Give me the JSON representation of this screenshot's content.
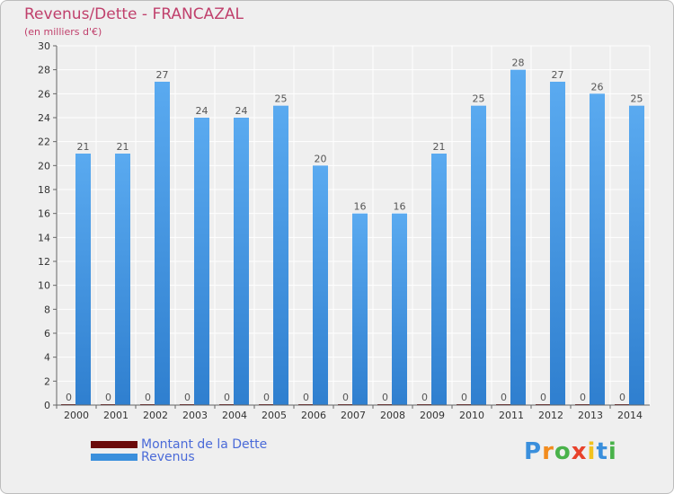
{
  "title": "Revenus/Dette - FRANCAZAL",
  "subtitle": "(en milliers d'€)",
  "logo_text": "Proxiti",
  "chart_data": {
    "type": "bar",
    "title": "Revenus/Dette - FRANCAZAL",
    "subtitle": "(en milliers d'€)",
    "categories": [
      "2000",
      "2001",
      "2002",
      "2003",
      "2004",
      "2005",
      "2006",
      "2007",
      "2008",
      "2009",
      "2010",
      "2011",
      "2012",
      "2013",
      "2014"
    ],
    "series": [
      {
        "name": "Montant de la Dette",
        "color": "#6b0a0a",
        "values": [
          0,
          0,
          0,
          0,
          0,
          0,
          0,
          0,
          0,
          0,
          0,
          0,
          0,
          0,
          0
        ]
      },
      {
        "name": "Revenus",
        "color": "#3a8fdc",
        "values": [
          21,
          21,
          27,
          24,
          24,
          25,
          20,
          16,
          16,
          21,
          25,
          28,
          27,
          26,
          25
        ]
      }
    ],
    "ylim": [
      0,
      30
    ],
    "yticks": [
      0,
      2,
      4,
      6,
      8,
      10,
      12,
      14,
      16,
      18,
      20,
      22,
      24,
      26,
      28,
      30
    ],
    "grid": true,
    "legend_position": "bottom-left"
  },
  "colors": {
    "title": "#c0406c",
    "legend_text": "#4a6ad8",
    "grid": "#ffffff"
  }
}
